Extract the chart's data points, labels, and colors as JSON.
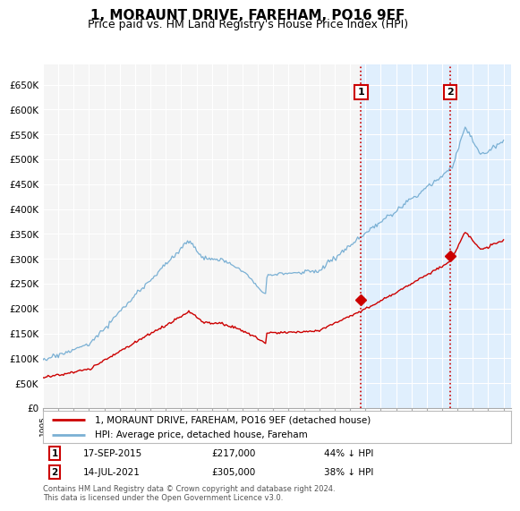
{
  "title": "1, MORAUNT DRIVE, FAREHAM, PO16 9EF",
  "subtitle": "Price paid vs. HM Land Registry's House Price Index (HPI)",
  "title_fontsize": 11,
  "subtitle_fontsize": 9,
  "ylabel_ticks": [
    "£0",
    "£50K",
    "£100K",
    "£150K",
    "£200K",
    "£250K",
    "£300K",
    "£350K",
    "£400K",
    "£450K",
    "£500K",
    "£550K",
    "£600K",
    "£650K"
  ],
  "ytick_values": [
    0,
    50000,
    100000,
    150000,
    200000,
    250000,
    300000,
    350000,
    400000,
    450000,
    500000,
    550000,
    600000,
    650000
  ],
  "ylim": [
    0,
    690000
  ],
  "background_color": "#ffffff",
  "plot_bg_color": "#f5f5f5",
  "grid_color": "#ffffff",
  "hpi_color": "#7ab0d4",
  "price_color": "#cc0000",
  "vline_color": "#cc0000",
  "shade_color": "#ddeeff",
  "legend_label_price": "1, MORAUNT DRIVE, FAREHAM, PO16 9EF (detached house)",
  "legend_label_hpi": "HPI: Average price, detached house, Fareham",
  "sale1_date": 2015.72,
  "sale1_price": 217000,
  "sale1_label": "1",
  "sale2_date": 2021.54,
  "sale2_price": 305000,
  "sale2_label": "2",
  "footer_text": "Contains HM Land Registry data © Crown copyright and database right 2024.\nThis data is licensed under the Open Government Licence v3.0.",
  "annotation_info": [
    {
      "label": "1",
      "date": "17-SEP-2015",
      "price": "£217,000",
      "hpi": "44% ↓ HPI"
    },
    {
      "label": "2",
      "date": "14-JUL-2021",
      "price": "£305,000",
      "hpi": "38% ↓ HPI"
    }
  ]
}
